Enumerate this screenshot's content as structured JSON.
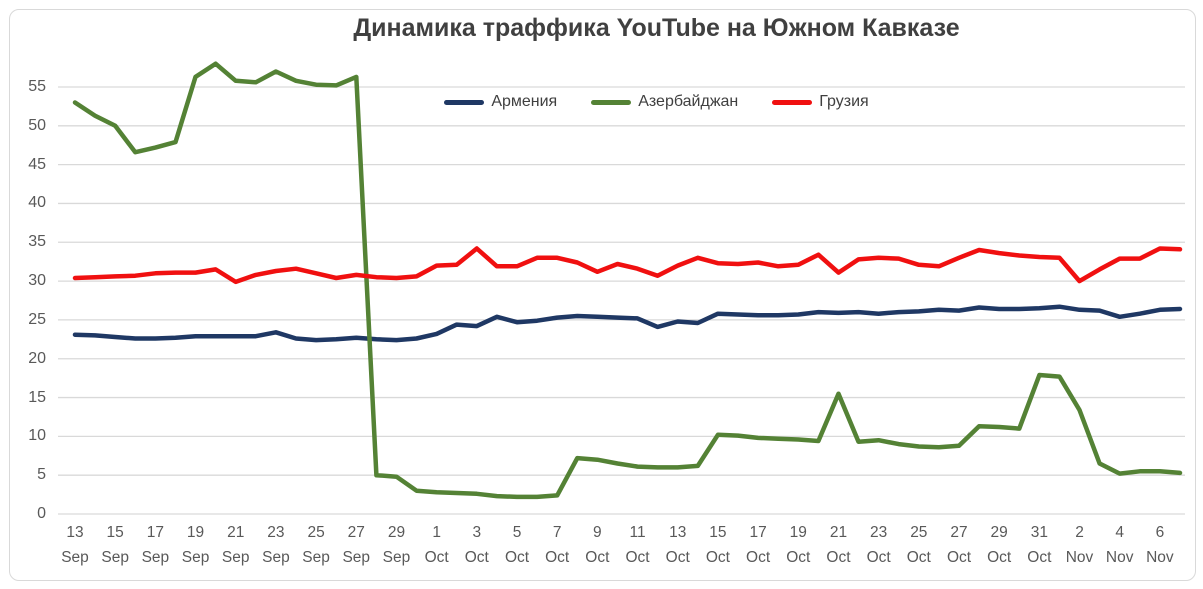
{
  "title": "Динамика траффика YouTube на Южном Кавказе",
  "colors": {
    "armenia": "#1f3864",
    "azerbaijan": "#548235",
    "georgia": "#f01010",
    "grid": "#d9d9d9",
    "axis_text": "#595959",
    "title_text": "#404040",
    "frame_border": "#d9d9d9",
    "background": "#ffffff"
  },
  "chart_data": {
    "type": "line",
    "title": "Динамика траффика YouTube на Южном Кавказе",
    "xlabel": "",
    "ylabel": "",
    "ylim": [
      0,
      55
    ],
    "ytick_step": 5,
    "ytick_labels": [
      "0",
      "5",
      "10",
      "15",
      "20",
      "25",
      "30",
      "35",
      "40",
      "45",
      "50",
      "55"
    ],
    "xtick_every": 2,
    "grid": "horizontal",
    "legend_position": "top-center",
    "categories": [
      "13 Sep",
      "14 Sep",
      "15 Sep",
      "16 Sep",
      "17 Sep",
      "18 Sep",
      "19 Sep",
      "20 Sep",
      "21 Sep",
      "22 Sep",
      "23 Sep",
      "24 Sep",
      "25 Sep",
      "26 Sep",
      "27 Sep",
      "28 Sep",
      "29 Sep",
      "30 Sep",
      "1 Oct",
      "2 Oct",
      "3 Oct",
      "4 Oct",
      "5 Oct",
      "6 Oct",
      "7 Oct",
      "8 Oct",
      "9 Oct",
      "10 Oct",
      "11 Oct",
      "12 Oct",
      "13 Oct",
      "14 Oct",
      "15 Oct",
      "16 Oct",
      "17 Oct",
      "18 Oct",
      "19 Oct",
      "20 Oct",
      "21 Oct",
      "22 Oct",
      "23 Oct",
      "24 Oct",
      "25 Oct",
      "26 Oct",
      "27 Oct",
      "28 Oct",
      "29 Oct",
      "30 Oct",
      "31 Oct",
      "1 Nov",
      "2 Nov",
      "3 Nov",
      "4 Nov",
      "5 Nov",
      "6 Nov",
      "7 Nov"
    ],
    "series": [
      {
        "name": "Армения",
        "color": "#1f3864",
        "values": [
          23.1,
          23.0,
          22.8,
          22.6,
          22.6,
          22.7,
          22.9,
          22.9,
          22.9,
          22.9,
          23.4,
          22.6,
          22.4,
          22.5,
          22.7,
          22.5,
          22.4,
          22.6,
          23.2,
          24.4,
          24.2,
          25.4,
          24.7,
          24.9,
          25.3,
          25.5,
          25.4,
          25.3,
          25.2,
          24.1,
          24.8,
          24.6,
          25.8,
          25.7,
          25.6,
          25.6,
          25.7,
          26.0,
          25.9,
          26.0,
          25.8,
          26.0,
          26.1,
          26.3,
          26.2,
          26.6,
          26.4,
          26.4,
          26.5,
          26.7,
          26.3,
          26.2,
          25.4,
          25.8,
          26.3,
          26.4
        ]
      },
      {
        "name": "Азербайджан",
        "color": "#548235",
        "values": [
          53.0,
          51.3,
          50.0,
          46.6,
          47.2,
          47.9,
          56.3,
          58.0,
          55.8,
          55.6,
          57.0,
          55.8,
          55.3,
          55.2,
          56.3,
          5.0,
          4.8,
          3.0,
          2.8,
          2.7,
          2.6,
          2.3,
          2.2,
          2.2,
          2.4,
          7.2,
          7.0,
          6.5,
          6.1,
          6.0,
          6.0,
          6.2,
          10.2,
          10.1,
          9.8,
          9.7,
          9.6,
          9.4,
          15.5,
          9.3,
          9.5,
          9.0,
          8.7,
          8.6,
          8.8,
          11.3,
          11.2,
          11.0,
          17.9,
          17.7,
          13.4,
          6.5,
          5.2,
          5.5,
          5.5,
          5.3
        ]
      },
      {
        "name": "Грузия",
        "color": "#f01010",
        "values": [
          30.4,
          30.5,
          30.6,
          30.7,
          31.0,
          31.1,
          31.1,
          31.5,
          29.9,
          30.8,
          31.3,
          31.6,
          31.0,
          30.4,
          30.8,
          30.5,
          30.4,
          30.6,
          32.0,
          32.1,
          34.2,
          31.9,
          31.9,
          33.0,
          33.0,
          32.4,
          31.2,
          32.2,
          31.6,
          30.7,
          32.0,
          33.0,
          32.3,
          32.2,
          32.4,
          31.9,
          32.1,
          33.4,
          31.1,
          32.8,
          33.0,
          32.9,
          32.1,
          31.9,
          33.0,
          34.0,
          33.6,
          33.3,
          33.1,
          33.0,
          30.0,
          31.5,
          32.9,
          32.9,
          34.2,
          34.1
        ]
      }
    ]
  }
}
